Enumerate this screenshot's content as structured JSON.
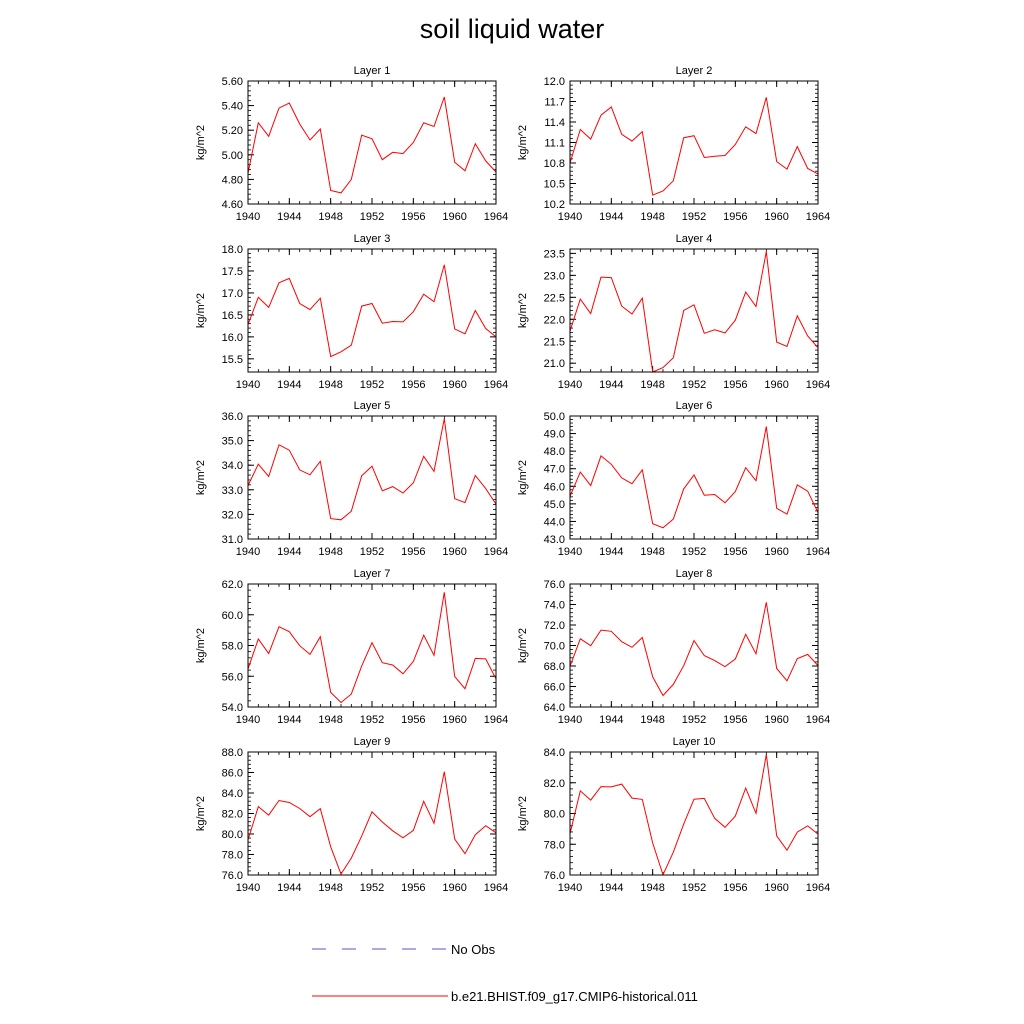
{
  "page": {
    "title": "soil liquid water"
  },
  "chart_data": {
    "type": "line",
    "title": "soil liquid water",
    "ylabel": "kg/m^2",
    "line_color": "#ff0000",
    "x": [
      1940,
      1941,
      1942,
      1943,
      1944,
      1945,
      1946,
      1947,
      1948,
      1949,
      1950,
      1951,
      1952,
      1953,
      1954,
      1955,
      1956,
      1957,
      1958,
      1959,
      1960,
      1961,
      1962,
      1963,
      1964
    ],
    "x_ticks": [
      "1940",
      "1944",
      "1948",
      "1952",
      "1956",
      "1960",
      "1964"
    ],
    "xlim": [
      1940,
      1964
    ],
    "panels": [
      {
        "title": "Layer 1",
        "ylim": [
          4.6,
          5.6
        ],
        "yticks": [
          "4.60",
          "4.80",
          "5.00",
          "5.20",
          "5.40",
          "5.60"
        ],
        "values": [
          4.85,
          5.26,
          5.15,
          5.38,
          5.42,
          5.25,
          5.12,
          5.21,
          4.71,
          4.69,
          4.8,
          5.16,
          5.13,
          4.96,
          5.02,
          5.01,
          5.1,
          5.26,
          5.23,
          5.47,
          4.94,
          4.87,
          5.09,
          4.95,
          4.86
        ]
      },
      {
        "title": "Layer 2",
        "ylim": [
          10.2,
          12.0
        ],
        "yticks": [
          "10.2",
          "10.5",
          "10.8",
          "11.1",
          "11.4",
          "11.7",
          "12.0"
        ],
        "values": [
          10.8,
          11.29,
          11.15,
          11.5,
          11.62,
          11.22,
          11.12,
          11.26,
          10.33,
          10.39,
          10.54,
          11.17,
          11.2,
          10.88,
          10.9,
          10.91,
          11.07,
          11.33,
          11.23,
          11.76,
          10.82,
          10.71,
          11.04,
          10.72,
          10.64
        ]
      },
      {
        "title": "Layer 3",
        "ylim": [
          15.2,
          18.0
        ],
        "yticks": [
          "15.5",
          "16.0",
          "16.5",
          "17.0",
          "17.5",
          "18.0"
        ],
        "values": [
          16.28,
          16.9,
          16.67,
          17.23,
          17.33,
          16.76,
          16.62,
          16.88,
          15.55,
          15.66,
          15.81,
          16.7,
          16.76,
          16.31,
          16.35,
          16.34,
          16.57,
          16.97,
          16.8,
          17.64,
          16.18,
          16.07,
          16.6,
          16.19,
          16.0
        ]
      },
      {
        "title": "Layer 4",
        "ylim": [
          20.8,
          23.6
        ],
        "yticks": [
          "21.0",
          "21.5",
          "22.0",
          "22.5",
          "23.0",
          "23.5"
        ],
        "values": [
          21.73,
          22.46,
          22.13,
          22.96,
          22.95,
          22.3,
          22.12,
          22.48,
          20.8,
          20.9,
          21.12,
          22.2,
          22.33,
          21.68,
          21.76,
          21.69,
          21.98,
          22.62,
          22.29,
          23.54,
          21.48,
          21.38,
          22.08,
          21.62,
          21.35
        ]
      },
      {
        "title": "Layer 5",
        "ylim": [
          31.0,
          36.0
        ],
        "yticks": [
          "31.0",
          "32.0",
          "33.0",
          "34.0",
          "35.0",
          "36.0"
        ],
        "values": [
          33.17,
          34.04,
          33.54,
          34.83,
          34.61,
          33.81,
          33.61,
          34.16,
          31.83,
          31.78,
          32.13,
          33.57,
          33.96,
          32.96,
          33.13,
          32.87,
          33.28,
          34.36,
          33.75,
          35.89,
          32.64,
          32.48,
          33.58,
          33.05,
          32.42
        ]
      },
      {
        "title": "Layer 6",
        "ylim": [
          43.0,
          50.0
        ],
        "yticks": [
          "43.0",
          "44.0",
          "45.0",
          "46.0",
          "47.0",
          "48.0",
          "49.0",
          "50.0"
        ],
        "values": [
          45.43,
          46.81,
          46.04,
          47.73,
          47.25,
          46.48,
          46.15,
          46.94,
          43.87,
          43.64,
          44.13,
          45.85,
          46.64,
          45.49,
          45.53,
          45.06,
          45.7,
          47.06,
          46.32,
          49.4,
          44.75,
          44.41,
          46.08,
          45.72,
          44.5
        ]
      },
      {
        "title": "Layer 7",
        "ylim": [
          54.0,
          62.0
        ],
        "yticks": [
          "54.0",
          "56.0",
          "58.0",
          "60.0",
          "62.0"
        ],
        "values": [
          56.48,
          58.42,
          57.47,
          59.22,
          58.9,
          57.99,
          57.42,
          58.57,
          54.95,
          54.29,
          54.84,
          56.67,
          58.18,
          56.88,
          56.73,
          56.16,
          56.96,
          58.67,
          57.36,
          61.46,
          55.98,
          55.19,
          57.16,
          57.13,
          55.83
        ]
      },
      {
        "title": "Layer 8",
        "ylim": [
          64.0,
          76.0
        ],
        "yticks": [
          "64.0",
          "66.0",
          "68.0",
          "70.0",
          "72.0",
          "74.0",
          "76.0"
        ],
        "values": [
          67.97,
          70.65,
          69.98,
          71.5,
          71.39,
          70.37,
          69.82,
          70.78,
          66.94,
          65.12,
          66.2,
          68.03,
          70.48,
          69.01,
          68.53,
          67.93,
          68.68,
          71.09,
          69.19,
          74.21,
          67.76,
          66.56,
          68.72,
          69.13,
          68.04
        ]
      },
      {
        "title": "Layer 9",
        "ylim": [
          76.0,
          88.0
        ],
        "yticks": [
          "76.0",
          "78.0",
          "80.0",
          "82.0",
          "84.0",
          "86.0",
          "88.0"
        ],
        "values": [
          79.41,
          82.67,
          81.84,
          83.27,
          83.07,
          82.49,
          81.69,
          82.48,
          78.75,
          76.1,
          77.65,
          79.8,
          82.17,
          81.17,
          80.31,
          79.63,
          80.35,
          83.19,
          81.04,
          86.08,
          79.51,
          78.08,
          79.93,
          80.81,
          80.12
        ]
      },
      {
        "title": "Layer 10",
        "ylim": [
          76.0,
          84.0
        ],
        "yticks": [
          "76.0",
          "78.0",
          "80.0",
          "82.0",
          "84.0"
        ],
        "values": [
          78.68,
          81.47,
          80.87,
          81.75,
          81.73,
          81.91,
          81.0,
          80.92,
          78.08,
          76.01,
          77.48,
          79.31,
          80.93,
          80.98,
          79.69,
          79.1,
          79.83,
          81.65,
          80.01,
          83.84,
          78.54,
          77.61,
          78.79,
          79.2,
          78.66
        ]
      }
    ],
    "legend": [
      {
        "label": "No Obs",
        "color": "#5555cc",
        "style": "dashed"
      },
      {
        "label": "b.e21.BHIST.f09_g17.CMIP6-historical.011",
        "color": "#ff0000",
        "style": "solid"
      }
    ]
  }
}
